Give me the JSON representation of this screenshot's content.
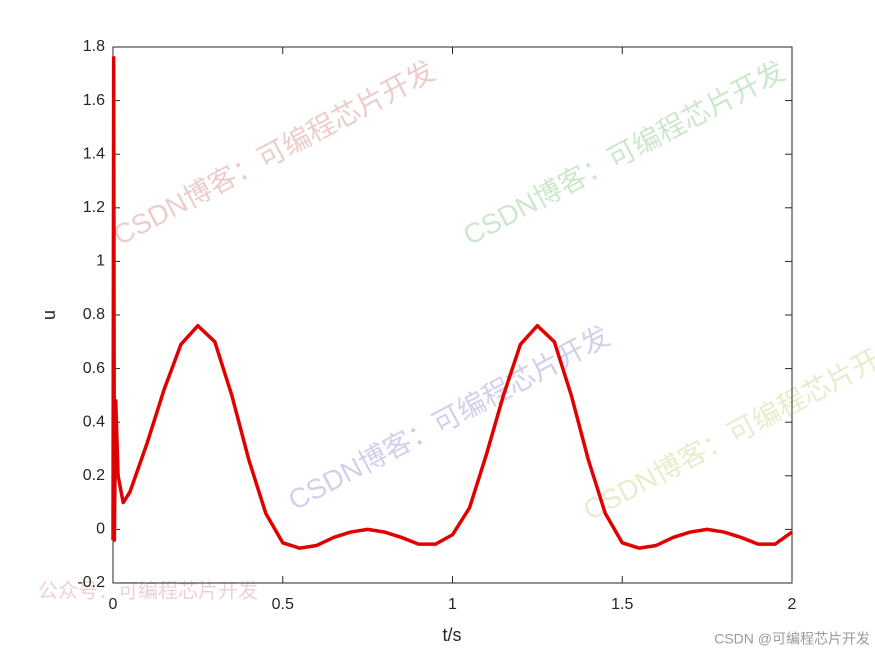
{
  "chart_data": {
    "type": "line",
    "xlabel": "t/s",
    "ylabel": "u",
    "x": [
      0,
      0.002,
      0.004,
      0.008,
      0.015,
      0.03,
      0.05,
      0.1,
      0.15,
      0.2,
      0.25,
      0.3,
      0.35,
      0.4,
      0.45,
      0.5,
      0.55,
      0.6,
      0.65,
      0.7,
      0.75,
      0.8,
      0.85,
      0.9,
      0.95,
      1.0,
      1.05,
      1.1,
      1.15,
      1.2,
      1.25,
      1.3,
      1.35,
      1.4,
      1.45,
      1.5,
      1.55,
      1.6,
      1.65,
      1.7,
      1.75,
      1.8,
      1.85,
      1.9,
      1.95,
      2.0
    ],
    "series": [
      {
        "name": "u",
        "color": "#e00000",
        "values": [
          -0.04,
          1.76,
          -0.04,
          0.48,
          0.2,
          0.1,
          0.14,
          0.32,
          0.52,
          0.69,
          0.76,
          0.7,
          0.5,
          0.26,
          0.06,
          -0.05,
          -0.07,
          -0.06,
          -0.03,
          -0.01,
          0.0,
          -0.01,
          -0.03,
          -0.055,
          -0.055,
          -0.02,
          0.08,
          0.28,
          0.5,
          0.69,
          0.76,
          0.7,
          0.5,
          0.26,
          0.06,
          -0.05,
          -0.07,
          -0.06,
          -0.03,
          -0.01,
          0.0,
          -0.01,
          -0.03,
          -0.055,
          -0.055,
          -0.01
        ]
      }
    ],
    "xlim": [
      0,
      2
    ],
    "xticks": [
      0,
      0.5,
      1,
      1.5,
      2
    ],
    "ylim": [
      -0.2,
      1.8
    ],
    "yticks": [
      -0.2,
      0,
      0.2,
      0.4,
      0.6,
      0.8,
      1,
      1.2,
      1.4,
      1.6,
      1.8
    ],
    "grid": false
  },
  "watermarks": [
    "CSDN博客：可编程芯片开发",
    "CSDN博客：可编程芯片开发",
    "CSDN博客：可编程芯片开发",
    "CSDN博客：可编程芯片开发",
    "公众号：可编程芯片开发",
    "CSDN @可编程芯片开发"
  ]
}
